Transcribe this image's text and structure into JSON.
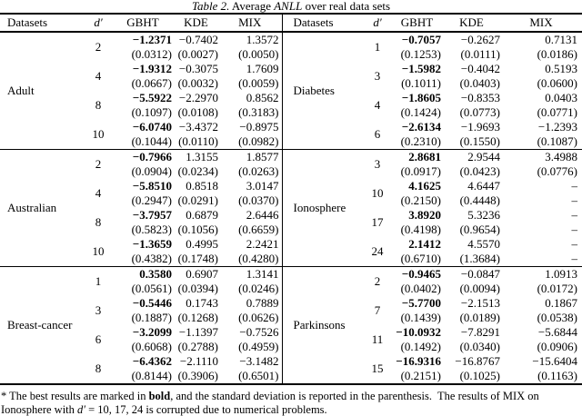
{
  "title": {
    "t1": "Table 2.",
    "t2": " Average ",
    "t3": "ANLL",
    "t4": " over real data sets"
  },
  "columns": [
    "Datasets",
    "d′",
    "GBHT",
    "KDE",
    "MIX",
    "Datasets",
    "d′",
    "GBHT",
    "KDE",
    "MIX"
  ],
  "groups": [
    {
      "left": {
        "dataset": "Adult",
        "rows": [
          {
            "d": "2",
            "gbht": "−1.2371",
            "gbht_sd": "(0.0312)",
            "kde": "−0.7402",
            "kde_sd": "(0.0027)",
            "mix": "1.3572",
            "mix_sd": "(0.0050)"
          },
          {
            "d": "4",
            "gbht": "−1.9312",
            "gbht_sd": "(0.0667)",
            "kde": "−0.3075",
            "kde_sd": "(0.0032)",
            "mix": "1.7609",
            "mix_sd": "(0.0059)"
          },
          {
            "d": "8",
            "gbht": "−5.5922",
            "gbht_sd": "(0.1097)",
            "kde": "−2.2970",
            "kde_sd": "(0.0108)",
            "mix": "0.8562",
            "mix_sd": "(0.3183)"
          },
          {
            "d": "10",
            "gbht": "−6.0740",
            "gbht_sd": "(0.1044)",
            "kde": "−3.4372",
            "kde_sd": "(0.0110)",
            "mix": "−0.8975",
            "mix_sd": "(0.0982)"
          }
        ]
      },
      "right": {
        "dataset": "Diabetes",
        "rows": [
          {
            "d": "1",
            "gbht": "−0.7057",
            "gbht_sd": "(0.1253)",
            "kde": "−0.2627",
            "kde_sd": "(0.0111)",
            "mix": "0.7131",
            "mix_sd": "(0.0186)"
          },
          {
            "d": "3",
            "gbht": "−1.5982",
            "gbht_sd": "(0.1011)",
            "kde": "−0.4042",
            "kde_sd": "(0.0403)",
            "mix": "0.5193",
            "mix_sd": "(0.0600)"
          },
          {
            "d": "4",
            "gbht": "−1.8605",
            "gbht_sd": "(0.1424)",
            "kde": "−0.8353",
            "kde_sd": "(0.0773)",
            "mix": "0.0403",
            "mix_sd": "(0.0771)"
          },
          {
            "d": "6",
            "gbht": "−2.6134",
            "gbht_sd": "(0.2310)",
            "kde": "−1.9693",
            "kde_sd": "(0.1550)",
            "mix": "−1.2393",
            "mix_sd": "(0.1087)"
          }
        ]
      }
    },
    {
      "left": {
        "dataset": "Australian",
        "rows": [
          {
            "d": "2",
            "gbht": "−0.7966",
            "gbht_sd": "(0.0904)",
            "kde": "1.3155",
            "kde_sd": "(0.0234)",
            "mix": "1.8577",
            "mix_sd": "(0.0263)"
          },
          {
            "d": "4",
            "gbht": "−5.8510",
            "gbht_sd": "(0.2947)",
            "kde": "0.8518",
            "kde_sd": "(0.0291)",
            "mix": "3.0147",
            "mix_sd": "(0.0370)"
          },
          {
            "d": "8",
            "gbht": "−3.7957",
            "gbht_sd": "(0.5823)",
            "kde": "0.6879",
            "kde_sd": "(0.1056)",
            "mix": "2.6446",
            "mix_sd": "(0.6659)"
          },
          {
            "d": "10",
            "gbht": "−1.3659",
            "gbht_sd": "(0.4382)",
            "kde": "0.4995",
            "kde_sd": "(0.1748)",
            "mix": "2.2421",
            "mix_sd": "(0.4280)"
          }
        ]
      },
      "right": {
        "dataset": "Ionosphere",
        "rows": [
          {
            "d": "3",
            "gbht": "2.8681",
            "gbht_sd": "(0.0917)",
            "kde": "2.9544",
            "kde_sd": "(0.0423)",
            "mix": "3.4988",
            "mix_sd": "(0.0776)"
          },
          {
            "d": "10",
            "gbht": "4.1625",
            "gbht_sd": "(0.2150)",
            "kde": "4.6447",
            "kde_sd": "(0.4448)",
            "mix": "–",
            "mix_sd": "–"
          },
          {
            "d": "17",
            "gbht": "3.8920",
            "gbht_sd": "(0.4198)",
            "kde": "5.3236",
            "kde_sd": "(0.9654)",
            "mix": "–",
            "mix_sd": "–"
          },
          {
            "d": "24",
            "gbht": "2.1412",
            "gbht_sd": "(0.6710)",
            "kde": "4.5570",
            "kde_sd": "(1.3684)",
            "mix": "–",
            "mix_sd": "–"
          }
        ]
      }
    },
    {
      "left": {
        "dataset": "Breast-cancer",
        "rows": [
          {
            "d": "1",
            "gbht": "0.3580",
            "gbht_sd": "(0.0561)",
            "kde": "0.6907",
            "kde_sd": "(0.0394)",
            "mix": "1.3141",
            "mix_sd": "(0.0246)"
          },
          {
            "d": "3",
            "gbht": "−0.5446",
            "gbht_sd": "(0.1887)",
            "kde": "0.1743",
            "kde_sd": "(0.1268)",
            "mix": "0.7889",
            "mix_sd": "(0.0626)"
          },
          {
            "d": "6",
            "gbht": "−3.2099",
            "gbht_sd": "(0.6068)",
            "kde": "−1.1397",
            "kde_sd": "(0.2788)",
            "mix": "−0.7526",
            "mix_sd": "(0.4959)"
          },
          {
            "d": "8",
            "gbht": "−6.4362",
            "gbht_sd": "(0.8144)",
            "kde": "−2.1110",
            "kde_sd": "(0.3906)",
            "mix": "−3.1482",
            "mix_sd": "(0.6501)"
          }
        ]
      },
      "right": {
        "dataset": "Parkinsons",
        "rows": [
          {
            "d": "2",
            "gbht": "−0.9465",
            "gbht_sd": "(0.0402)",
            "kde": "−0.0847",
            "kde_sd": "(0.0094)",
            "mix": "1.0913",
            "mix_sd": "(0.0172)"
          },
          {
            "d": "7",
            "gbht": "−5.7700",
            "gbht_sd": "(0.1439)",
            "kde": "−2.1513",
            "kde_sd": "(0.0189)",
            "mix": "0.1867",
            "mix_sd": "(0.0538)"
          },
          {
            "d": "11",
            "gbht": "−10.0932",
            "gbht_sd": "(0.1492)",
            "kde": "−7.8291",
            "kde_sd": "(0.0340)",
            "mix": "−5.6844",
            "mix_sd": "(0.0906)"
          },
          {
            "d": "15",
            "gbht": "−16.9316",
            "gbht_sd": "(0.2151)",
            "kde": "−16.8767",
            "kde_sd": "(0.1025)",
            "mix": "−15.6404",
            "mix_sd": "(0.1163)"
          }
        ]
      }
    }
  ],
  "footnote": {
    "f1": "* The best results are marked in ",
    "f2": "bold",
    "f3": ", and the standard deviation is reported in the parenthesis.  The results of MIX on Ionosphere with ",
    "f4": "d′",
    "f5": " = 10, 17, 24 is corrupted due to numerical problems."
  }
}
